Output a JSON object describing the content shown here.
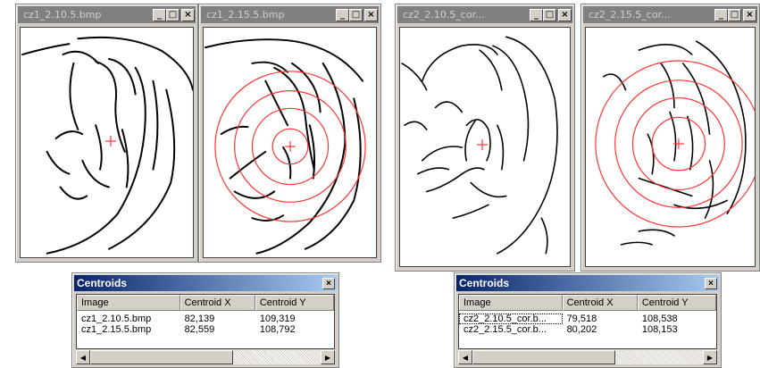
{
  "windows": [
    {
      "title": "cz1_2.10.5.bmp"
    },
    {
      "title": "cz1_2.15.5.bmp"
    },
    {
      "title": "cz2_2.10.5_cor..."
    },
    {
      "title": "cz2_2.15.5_cor..."
    }
  ],
  "title_buttons": {
    "minimize": "_",
    "maximize": "□",
    "close": "×"
  },
  "centroids_left": {
    "title": "Centroids",
    "close": "×",
    "headers": [
      "Image",
      "Centroid X",
      "Centroid Y"
    ],
    "rows": [
      [
        "cz1_2.10.5.bmp",
        "82,139",
        "109,319"
      ],
      [
        "cz1_2.15.5.bmp",
        "82,559",
        "108,792"
      ]
    ]
  },
  "centroids_right": {
    "title": "Centroids",
    "close": "×",
    "headers": [
      "Image",
      "Centroid X",
      "Centroid Y"
    ],
    "rows": [
      [
        "cz2_2.10.5_cor.b...",
        "79,518",
        "108,538"
      ],
      [
        "cz2_2.15.5_cor.b...",
        "80,202",
        "108,153"
      ]
    ]
  },
  "scroll_arrows": {
    "left": "◀",
    "right": "▶"
  },
  "colors": {
    "marker": "#ff3333",
    "title_inactive": "#808080",
    "title_active_start": "#0a246a",
    "title_active_end": "#a6caf0"
  },
  "icons": [
    "minimize-icon",
    "maximize-icon",
    "close-icon",
    "crosshair-icon",
    "scroll-left-icon",
    "scroll-right-icon"
  ]
}
